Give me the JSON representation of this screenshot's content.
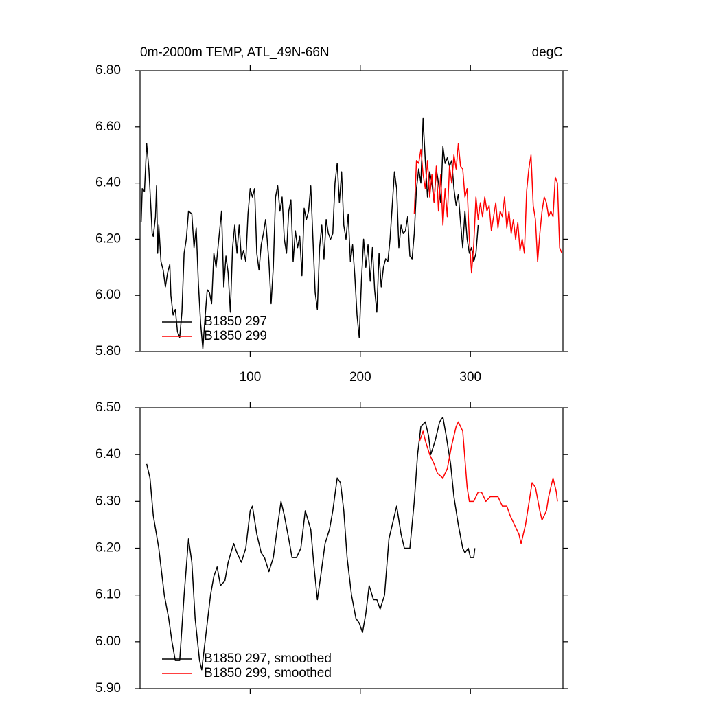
{
  "chart_data": [
    {
      "type": "line",
      "title_left": "0m-2000m TEMP, ATL_49N-66N",
      "title_right": "degC",
      "xlim": [
        0,
        384
      ],
      "xticks": [
        100,
        200,
        300
      ],
      "ylim": [
        5.8,
        6.8
      ],
      "yticks": [
        {
          "value": 5.8,
          "label": "5.80"
        },
        {
          "value": 6.0,
          "label": "6.00"
        },
        {
          "value": 6.2,
          "label": "6.20"
        },
        {
          "value": 6.4,
          "label": "6.40"
        },
        {
          "value": 6.6,
          "label": "6.60"
        },
        {
          "value": 6.8,
          "label": "6.80"
        }
      ],
      "legend": "lower left",
      "series": [
        {
          "name": "B1850 297",
          "color": "#000000",
          "x": [
            1,
            2,
            4,
            6,
            8,
            10,
            11,
            12,
            14,
            15,
            16,
            17,
            19,
            21,
            23,
            25,
            27,
            28,
            30,
            32,
            34,
            36,
            38,
            40,
            42,
            44,
            47,
            49,
            51,
            53,
            55,
            57,
            59,
            61,
            63,
            65,
            67,
            69,
            72,
            74,
            76,
            78,
            80,
            82,
            84,
            86,
            88,
            90,
            92,
            94,
            96,
            98,
            100,
            102,
            104,
            106,
            108,
            110,
            112,
            114,
            117,
            119,
            121,
            123,
            125,
            127,
            129,
            131,
            133,
            135,
            137,
            139,
            141,
            143,
            145,
            147,
            149,
            151,
            153,
            155,
            157,
            159,
            161,
            163,
            165,
            167,
            169,
            171,
            173,
            175,
            177,
            179,
            181,
            183,
            185,
            187,
            189,
            191,
            193,
            195,
            197,
            199,
            201,
            203,
            205,
            207,
            209,
            211,
            213,
            215,
            217,
            219,
            221,
            223,
            225,
            227,
            229,
            231,
            233,
            235,
            237,
            239,
            241,
            243,
            245,
            247,
            249,
            251,
            253,
            255,
            257,
            259,
            261,
            263,
            265,
            267,
            269,
            271,
            273,
            275,
            277,
            279,
            281,
            283,
            285,
            287,
            289,
            291,
            293,
            295,
            297,
            299,
            301,
            303,
            305,
            307
          ],
          "values": [
            6.26,
            6.38,
            6.37,
            6.54,
            6.45,
            6.3,
            6.22,
            6.21,
            6.28,
            6.39,
            6.15,
            6.25,
            6.12,
            6.09,
            6.03,
            6.08,
            6.11,
            6.0,
            5.93,
            5.95,
            5.87,
            5.85,
            5.94,
            6.15,
            6.2,
            6.3,
            6.29,
            6.17,
            6.24,
            6.04,
            5.9,
            5.81,
            5.92,
            6.02,
            6.01,
            5.97,
            6.15,
            6.1,
            6.22,
            6.3,
            6.03,
            6.14,
            6.08,
            5.94,
            6.17,
            6.25,
            6.15,
            6.25,
            6.13,
            6.16,
            6.12,
            6.29,
            6.38,
            6.35,
            6.38,
            6.15,
            6.09,
            6.18,
            6.22,
            6.27,
            6.12,
            5.97,
            6.1,
            6.35,
            6.39,
            6.3,
            6.35,
            6.2,
            6.15,
            6.3,
            6.34,
            6.12,
            6.23,
            6.17,
            6.21,
            6.07,
            6.31,
            6.27,
            6.3,
            6.39,
            6.2,
            6.01,
            5.95,
            6.17,
            6.25,
            6.13,
            6.27,
            6.22,
            6.2,
            6.22,
            6.4,
            6.47,
            6.33,
            6.44,
            6.25,
            6.2,
            6.29,
            6.12,
            6.18,
            6.07,
            5.93,
            5.85,
            6.05,
            6.2,
            6.1,
            6.18,
            6.05,
            6.17,
            6.02,
            5.94,
            6.15,
            6.03,
            6.1,
            6.13,
            6.12,
            6.2,
            6.32,
            6.44,
            6.38,
            6.17,
            6.25,
            6.22,
            6.23,
            6.28,
            6.14,
            6.13,
            6.22,
            6.38,
            6.45,
            6.4,
            6.63,
            6.48,
            6.35,
            6.44,
            6.4,
            6.33,
            6.45,
            6.4,
            6.33,
            6.53,
            6.47,
            6.49,
            6.46,
            6.48,
            6.38,
            6.32,
            6.36,
            6.26,
            6.17,
            6.3,
            6.2,
            6.15,
            6.17,
            6.12,
            6.15,
            6.25
          ]
        },
        {
          "name": "B1850 299",
          "color": "#ff0000",
          "x": [
            249,
            251,
            253,
            255,
            257,
            259,
            261,
            263,
            265,
            267,
            269,
            271,
            273,
            275,
            277,
            279,
            281,
            283,
            285,
            287,
            289,
            291,
            293,
            295,
            297,
            299,
            301,
            303,
            305,
            307,
            309,
            311,
            313,
            315,
            317,
            319,
            321,
            323,
            325,
            327,
            329,
            331,
            333,
            335,
            337,
            339,
            341,
            343,
            345,
            347,
            349,
            351,
            353,
            355,
            357,
            359,
            361,
            363,
            365,
            367,
            369,
            371,
            373,
            375,
            377,
            379,
            381,
            383
          ],
          "values": [
            6.29,
            6.48,
            6.47,
            6.52,
            6.43,
            6.38,
            6.48,
            6.35,
            6.43,
            6.33,
            6.46,
            6.3,
            6.43,
            6.25,
            6.38,
            6.28,
            6.46,
            6.4,
            6.5,
            6.45,
            6.54,
            6.46,
            6.45,
            6.35,
            6.38,
            6.2,
            6.08,
            6.18,
            6.35,
            6.27,
            6.33,
            6.28,
            6.35,
            6.3,
            6.32,
            6.23,
            6.28,
            6.33,
            6.24,
            6.3,
            6.28,
            6.35,
            6.24,
            6.3,
            6.22,
            6.27,
            6.2,
            6.26,
            6.16,
            6.2,
            6.15,
            6.37,
            6.45,
            6.5,
            6.32,
            6.27,
            6.12,
            6.22,
            6.3,
            6.35,
            6.33,
            6.28,
            6.3,
            6.28,
            6.42,
            6.4,
            6.17,
            6.15
          ]
        }
      ]
    },
    {
      "type": "line",
      "xlim": [
        0,
        384
      ],
      "xticks": [
        100,
        200,
        300
      ],
      "ylim": [
        5.9,
        6.5
      ],
      "yticks": [
        {
          "value": 5.9,
          "label": "5.90"
        },
        {
          "value": 6.0,
          "label": "6.00"
        },
        {
          "value": 6.1,
          "label": "6.10"
        },
        {
          "value": 6.2,
          "label": "6.20"
        },
        {
          "value": 6.3,
          "label": "6.30"
        },
        {
          "value": 6.4,
          "label": "6.40"
        },
        {
          "value": 6.5,
          "label": "6.50"
        }
      ],
      "legend": "lower left",
      "series": [
        {
          "name": "B1850 297, smoothed",
          "color": "#000000",
          "x": [
            6,
            9,
            12,
            17,
            22,
            26,
            29,
            32,
            36,
            40,
            44,
            47,
            50,
            54,
            56,
            60,
            64,
            67,
            70,
            73,
            77,
            80,
            85,
            88,
            92,
            96,
            100,
            102,
            106,
            110,
            113,
            117,
            121,
            125,
            128,
            131,
            135,
            138,
            142,
            146,
            150,
            155,
            158,
            161,
            164,
            168,
            172,
            175,
            179,
            182,
            185,
            188,
            192,
            196,
            199,
            202,
            205,
            208,
            212,
            215,
            218,
            222,
            226,
            229,
            233,
            237,
            240,
            245,
            249,
            252,
            255,
            259,
            262,
            264,
            268,
            272,
            275,
            278,
            282,
            285,
            289,
            293,
            295,
            298,
            300,
            303,
            304
          ],
          "values": [
            6.38,
            6.35,
            6.27,
            6.2,
            6.1,
            6.05,
            6.0,
            5.96,
            5.96,
            6.1,
            6.22,
            6.17,
            6.05,
            5.96,
            5.94,
            6.02,
            6.1,
            6.14,
            6.16,
            6.12,
            6.13,
            6.17,
            6.21,
            6.19,
            6.17,
            6.2,
            6.28,
            6.29,
            6.23,
            6.19,
            6.18,
            6.15,
            6.18,
            6.25,
            6.3,
            6.27,
            6.22,
            6.18,
            6.18,
            6.2,
            6.28,
            6.24,
            6.16,
            6.09,
            6.14,
            6.21,
            6.24,
            6.28,
            6.35,
            6.34,
            6.28,
            6.18,
            6.1,
            6.05,
            6.04,
            6.02,
            6.06,
            6.12,
            6.09,
            6.09,
            6.07,
            6.1,
            6.22,
            6.25,
            6.29,
            6.23,
            6.2,
            6.2,
            6.3,
            6.4,
            6.46,
            6.47,
            6.44,
            6.4,
            6.43,
            6.47,
            6.48,
            6.44,
            6.38,
            6.31,
            6.25,
            6.2,
            6.19,
            6.2,
            6.18,
            6.18,
            6.2
          ]
        },
        {
          "name": "B1850 299, smoothed",
          "color": "#ff0000",
          "x": [
            254,
            257,
            259,
            263,
            267,
            270,
            275,
            279,
            283,
            287,
            289,
            293,
            297,
            299,
            303,
            307,
            310,
            314,
            318,
            321,
            325,
            329,
            333,
            336,
            340,
            344,
            346,
            350,
            354,
            356,
            359,
            363,
            365,
            369,
            371,
            375,
            378,
            379
          ],
          "values": [
            6.43,
            6.45,
            6.43,
            6.4,
            6.38,
            6.36,
            6.35,
            6.37,
            6.42,
            6.46,
            6.47,
            6.45,
            6.33,
            6.3,
            6.3,
            6.32,
            6.32,
            6.3,
            6.31,
            6.31,
            6.31,
            6.29,
            6.29,
            6.27,
            6.25,
            6.23,
            6.21,
            6.25,
            6.31,
            6.34,
            6.33,
            6.28,
            6.26,
            6.28,
            6.31,
            6.35,
            6.32,
            6.3
          ]
        }
      ]
    }
  ]
}
